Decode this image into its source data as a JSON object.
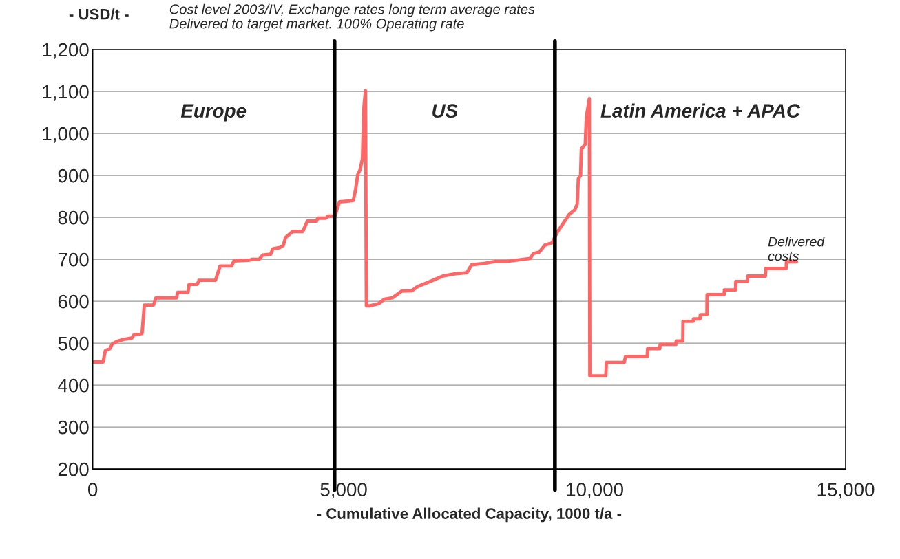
{
  "chart_data": {
    "type": "line",
    "subtitle": "Cost level 2003/IV, Exchange rates long term average rates\nDelivered to target market. 100% Operating rate",
    "xlabel": "- Cumulative Allocated Capacity, 1000 t/a -",
    "ylabel": "- USD/t -",
    "series": [
      {
        "color": "#ff6666",
        "x": [
          0,
          206,
          252,
          343,
          389,
          480,
          618,
          778,
          823,
          983,
          1029,
          1212,
          1258,
          1670,
          1693,
          1898,
          1921,
          2082,
          2117,
          2447,
          2538,
          2768,
          2813,
          3133,
          3179,
          3317,
          3385,
          3545,
          3591,
          3728,
          3797,
          3842,
          3980,
          4185,
          4277,
          4460,
          4483,
          4643,
          4689,
          4826,
          4872,
          4917,
          5191,
          5238,
          5283,
          5329,
          5375,
          5398,
          5434,
          5452,
          5512,
          5695,
          5809,
          5969,
          6152,
          6358,
          6473,
          6701,
          6976,
          7205,
          7456,
          7548,
          7799,
          8028,
          8257,
          8714,
          8783,
          8897,
          9011,
          9149,
          9263,
          9492,
          9606,
          9652,
          9675,
          9720,
          9734,
          9812,
          9835,
          9894,
          9904,
          10223,
          10233,
          10590,
          10613,
          11047,
          11055,
          11298,
          11305,
          11619,
          11625,
          11756,
          11760,
          11962,
          11970,
          12100,
          12105,
          12237,
          12240,
          12580,
          12585,
          12808,
          12812,
          13046,
          13050,
          13403,
          13408,
          13815,
          13820,
          14021
        ],
        "values": [
          455,
          455,
          482,
          487,
          498,
          504,
          509,
          512,
          520,
          523,
          591,
          591,
          608,
          608,
          621,
          621,
          640,
          640,
          650,
          650,
          684,
          684,
          696,
          698,
          700,
          700,
          710,
          712,
          725,
          728,
          733,
          752,
          766,
          766,
          791,
          791,
          798,
          798,
          803,
          803,
          821,
          837,
          840,
          867,
          903,
          914,
          941,
          1056,
          1102,
          589,
          589,
          594,
          605,
          608,
          624,
          625,
          635,
          646,
          660,
          665,
          668,
          687,
          690,
          695,
          695,
          702,
          714,
          717,
          734,
          739,
          766,
          807,
          818,
          832,
          892,
          900,
          963,
          974,
          1039,
          1083,
          422,
          422,
          454,
          454,
          468,
          468,
          487,
          487,
          497,
          497,
          505,
          505,
          552,
          552,
          558,
          558,
          568,
          568,
          616,
          616,
          627,
          627,
          647,
          647,
          660,
          660,
          678,
          678,
          694,
          694
        ]
      }
    ],
    "xlim": [
      0,
      15000
    ],
    "xticks": [
      0,
      {
        "value": 5000,
        "label": "5,000"
      },
      {
        "value": 10000,
        "label": "10,000"
      },
      {
        "value": 15000,
        "label": "15,000"
      }
    ],
    "ylim": [
      200,
      1200
    ],
    "yticks": [
      200,
      300,
      400,
      500,
      600,
      700,
      800,
      900,
      {
        "value": 1000,
        "label": "1,000"
      },
      {
        "value": 1100,
        "label": "1,100"
      },
      {
        "value": 1200,
        "label": "1,200"
      }
    ],
    "grid": "y",
    "marker": "none",
    "line_style": "solid",
    "ref_lines": [
      {
        "axis": "x",
        "value": 4817,
        "color": "#000000"
      },
      {
        "axis": "x",
        "value": 9208,
        "color": "#000000"
      }
    ],
    "annotations": [
      "Europe",
      "US",
      "Latin America + APAC",
      {
        "text": "Delivered\ncosts",
        "x": 13450,
        "y": 690
      }
    ]
  }
}
